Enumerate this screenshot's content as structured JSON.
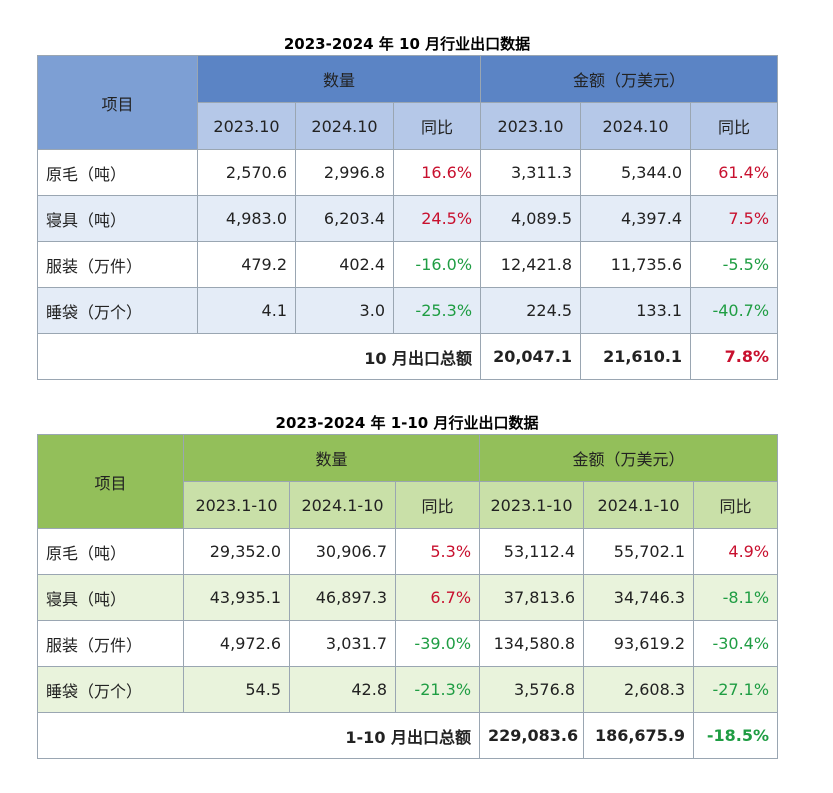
{
  "table1": {
    "caption": "2023-2024 年 10 月行业出口数据",
    "item_header": "项目",
    "qty_header": "数量",
    "amt_header": "金额（万美元）",
    "cols": [
      "2023.10",
      "2024.10",
      "同比",
      "2023.10",
      "2024.10",
      "同比"
    ],
    "rows": [
      {
        "label": "原毛（吨）",
        "q1": "2,570.6",
        "q2": "2,996.8",
        "qy": "16.6%",
        "a1": "3,311.3",
        "a2": "5,344.0",
        "ay": "61.4%"
      },
      {
        "label": "寝具（吨）",
        "q1": "4,983.0",
        "q2": "6,203.4",
        "qy": "24.5%",
        "a1": "4,089.5",
        "a2": "4,397.4",
        "ay": "7.5%"
      },
      {
        "label": "服装（万件）",
        "q1": "479.2",
        "q2": "402.4",
        "qy": "-16.0%",
        "a1": "12,421.8",
        "a2": "11,735.6",
        "ay": "-5.5%"
      },
      {
        "label": "睡袋（万个）",
        "q1": "4.1",
        "q2": "3.0",
        "qy": "-25.3%",
        "a1": "224.5",
        "a2": "133.1",
        "ay": "-40.7%"
      }
    ],
    "total": {
      "label": "10 月出口总额",
      "a1": "20,047.1",
      "a2": "21,610.1",
      "ay": "7.8%"
    }
  },
  "table2": {
    "caption": "2023-2024 年 1-10 月行业出口数据",
    "item_header": "项目",
    "qty_header": "数量",
    "amt_header": "金额（万美元）",
    "cols": [
      "2023.1-10",
      "2024.1-10",
      "同比",
      "2023.1-10",
      "2024.1-10",
      "同比"
    ],
    "rows": [
      {
        "label": "原毛（吨）",
        "q1": "29,352.0",
        "q2": "30,906.7",
        "qy": "5.3%",
        "a1": "53,112.4",
        "a2": "55,702.1",
        "ay": "4.9%"
      },
      {
        "label": "寝具（吨）",
        "q1": "43,935.1",
        "q2": "46,897.3",
        "qy": "6.7%",
        "a1": "37,813.6",
        "a2": "34,746.3",
        "ay": "-8.1%"
      },
      {
        "label": "服装（万件）",
        "q1": "4,972.6",
        "q2": "3,031.7",
        "qy": "-39.0%",
        "a1": "134,580.8",
        "a2": "93,619.2",
        "ay": "-30.4%"
      },
      {
        "label": "睡袋（万个）",
        "q1": "54.5",
        "q2": "42.8",
        "qy": "-21.3%",
        "a1": "3,576.8",
        "a2": "2,608.3",
        "ay": "-27.1%"
      }
    ],
    "total": {
      "label": "1-10 月出口总额",
      "a1": "229,083.6",
      "a2": "186,675.9",
      "ay": "-18.5%"
    }
  }
}
